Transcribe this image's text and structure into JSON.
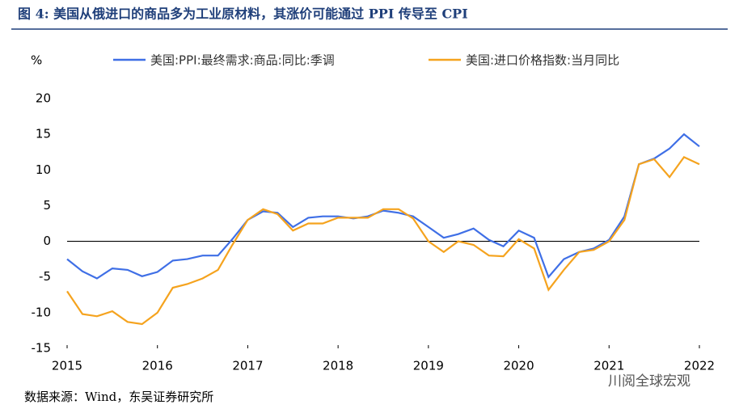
{
  "chart_data": {
    "type": "line",
    "title": "图 4:  美国从俄进口的商品多为工业原材料，其涨价可能通过 PPI 传导至 CPI",
    "y_label": "%",
    "source": "数据来源：Wind，东吴证券研究所",
    "watermark": "川阅全球宏观",
    "x": [
      2015.0,
      2015.17,
      2015.33,
      2015.5,
      2015.67,
      2015.83,
      2016.0,
      2016.17,
      2016.33,
      2016.5,
      2016.67,
      2016.83,
      2017.0,
      2017.17,
      2017.33,
      2017.5,
      2017.67,
      2017.83,
      2018.0,
      2018.17,
      2018.33,
      2018.5,
      2018.67,
      2018.83,
      2019.0,
      2019.17,
      2019.33,
      2019.5,
      2019.67,
      2019.83,
      2020.0,
      2020.17,
      2020.33,
      2020.5,
      2020.67,
      2020.83,
      2021.0,
      2021.17,
      2021.33,
      2021.5,
      2021.67,
      2021.83,
      2022.0
    ],
    "series": [
      {
        "name": "美国:PPI:最终需求:商品:同比:季调",
        "color": "#3f6fe6",
        "values": [
          -2.5,
          -4.2,
          -5.2,
          -3.8,
          -4.0,
          -4.9,
          -4.3,
          -2.7,
          -2.5,
          -2.0,
          -2.0,
          0.3,
          3.0,
          4.2,
          4.0,
          2.0,
          3.3,
          3.5,
          3.5,
          3.2,
          3.5,
          4.3,
          4.0,
          3.5,
          2.0,
          0.5,
          1.0,
          1.8,
          0.2,
          -0.7,
          1.5,
          0.5,
          -5.0,
          -2.5,
          -1.5,
          -1.0,
          0.2,
          3.5,
          10.8,
          11.6,
          13.0,
          15.0,
          13.3
        ]
      },
      {
        "name": "美国:进口价格指数:当月同比",
        "color": "#f5a31e",
        "values": [
          -7.0,
          -10.2,
          -10.5,
          -9.8,
          -11.3,
          -11.6,
          -10.0,
          -6.5,
          -6.0,
          -5.2,
          -4.0,
          -0.5,
          3.0,
          4.5,
          3.8,
          1.5,
          2.5,
          2.5,
          3.3,
          3.3,
          3.3,
          4.5,
          4.5,
          3.2,
          0.0,
          -1.5,
          0.0,
          -0.5,
          -2.0,
          -2.1,
          0.3,
          -1.0,
          -6.8,
          -4.0,
          -1.5,
          -1.2,
          0.0,
          3.0,
          10.8,
          11.5,
          9.0,
          11.8,
          10.8
        ]
      }
    ],
    "xlim": [
      2015,
      2022
    ],
    "xticks": [
      2015,
      2016,
      2017,
      2018,
      2019,
      2020,
      2021,
      2022
    ],
    "ylim": [
      -15,
      20
    ],
    "yticks": [
      -15,
      -10,
      -5,
      0,
      5,
      10,
      15,
      20
    ],
    "grid": false
  }
}
